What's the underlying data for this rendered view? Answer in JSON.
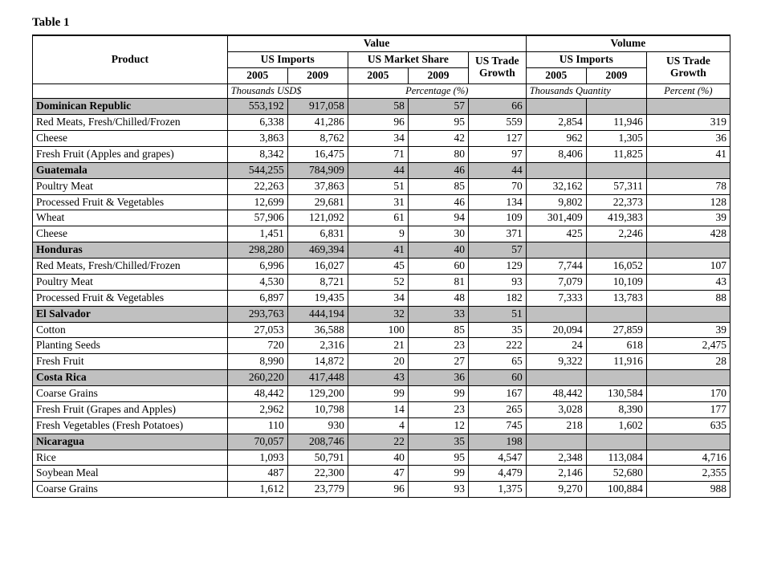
{
  "title": "Table 1",
  "headers": {
    "product": "Product",
    "value": "Value",
    "volume": "Volume",
    "us_imports": "US Imports",
    "us_market_share": "US Market Share",
    "us_trade_growth": "US Trade Growth",
    "us_trade_growth_multi": "US Trade Growth",
    "y2005": "2005",
    "y2009": "2009"
  },
  "units": {
    "thousands_usd": "Thousands USD$",
    "percentage": "Percentage (%)",
    "thousands_qty": "Thousands Quantity",
    "percent": "Percent (%)"
  },
  "countries": [
    {
      "name": "Dominican Republic",
      "totals": [
        "553,192",
        "917,058",
        "58",
        "57",
        "66",
        "",
        "",
        ""
      ],
      "rows": [
        {
          "label": "Red Meats, Fresh/Chilled/Frozen",
          "cells": [
            "6,338",
            "41,286",
            "96",
            "95",
            "559",
            "2,854",
            "11,946",
            "319"
          ]
        },
        {
          "label": "Cheese",
          "cells": [
            "3,863",
            "8,762",
            "34",
            "42",
            "127",
            "962",
            "1,305",
            "36"
          ]
        },
        {
          "label": "Fresh Fruit (Apples and grapes)",
          "cells": [
            "8,342",
            "16,475",
            "71",
            "80",
            "97",
            "8,406",
            "11,825",
            "41"
          ]
        }
      ]
    },
    {
      "name": "Guatemala",
      "totals": [
        "544,255",
        "784,909",
        "44",
        "46",
        "44",
        "",
        "",
        ""
      ],
      "rows": [
        {
          "label": "Poultry Meat",
          "cells": [
            "22,263",
            "37,863",
            "51",
            "85",
            "70",
            "32,162",
            "57,311",
            "78"
          ]
        },
        {
          "label": "Processed Fruit & Vegetables",
          "cells": [
            "12,699",
            "29,681",
            "31",
            "46",
            "134",
            "9,802",
            "22,373",
            "128"
          ]
        },
        {
          "label": "Wheat",
          "cells": [
            "57,906",
            "121,092",
            "61",
            "94",
            "109",
            "301,409",
            "419,383",
            "39"
          ]
        },
        {
          "label": "Cheese",
          "cells": [
            "1,451",
            "6,831",
            "9",
            "30",
            "371",
            "425",
            "2,246",
            "428"
          ]
        }
      ]
    },
    {
      "name": "Honduras",
      "totals": [
        "298,280",
        "469,394",
        "41",
        "40",
        "57",
        "",
        "",
        ""
      ],
      "rows": [
        {
          "label": "Red Meats, Fresh/Chilled/Frozen",
          "cells": [
            "6,996",
            "16,027",
            "45",
            "60",
            "129",
            "7,744",
            "16,052",
            "107"
          ]
        },
        {
          "label": "Poultry Meat",
          "cells": [
            "4,530",
            "8,721",
            "52",
            "81",
            "93",
            "7,079",
            "10,109",
            "43"
          ]
        },
        {
          "label": "Processed Fruit & Vegetables",
          "cells": [
            "6,897",
            "19,435",
            "34",
            "48",
            "182",
            "7,333",
            "13,783",
            "88"
          ]
        }
      ]
    },
    {
      "name": "El Salvador",
      "totals": [
        "293,763",
        "444,194",
        "32",
        "33",
        "51",
        "",
        "",
        ""
      ],
      "rows": [
        {
          "label": "Cotton",
          "cells": [
            "27,053",
            "36,588",
            "100",
            "85",
            "35",
            "20,094",
            "27,859",
            "39"
          ]
        },
        {
          "label": "Planting Seeds",
          "cells": [
            "720",
            "2,316",
            "21",
            "23",
            "222",
            "24",
            "618",
            "2,475"
          ]
        },
        {
          "label": "Fresh Fruit",
          "cells": [
            "8,990",
            "14,872",
            "20",
            "27",
            "65",
            "9,322",
            "11,916",
            "28"
          ]
        }
      ]
    },
    {
      "name": "Costa Rica",
      "totals": [
        "260,220",
        "417,448",
        "43",
        "36",
        "60",
        "",
        "",
        ""
      ],
      "rows": [
        {
          "label": "Coarse Grains",
          "cells": [
            "48,442",
            "129,200",
            "99",
            "99",
            "167",
            "48,442",
            "130,584",
            "170"
          ]
        },
        {
          "label": "Fresh Fruit (Grapes and Apples)",
          "cells": [
            "2,962",
            "10,798",
            "14",
            "23",
            "265",
            "3,028",
            "8,390",
            "177"
          ]
        },
        {
          "label": "Fresh Vegetables (Fresh Potatoes)",
          "cells": [
            "110",
            "930",
            "4",
            "12",
            "745",
            "218",
            "1,602",
            "635"
          ]
        }
      ]
    },
    {
      "name": "Nicaragua",
      "totals": [
        "70,057",
        "208,746",
        "22",
        "35",
        "198",
        "",
        "",
        ""
      ],
      "rows": [
        {
          "label": "Rice",
          "cells": [
            "1,093",
            "50,791",
            "40",
            "95",
            "4,547",
            "2,348",
            "113,084",
            "4,716"
          ]
        },
        {
          "label": "Soybean Meal",
          "cells": [
            "487",
            "22,300",
            "47",
            "99",
            "4,479",
            "2,146",
            "52,680",
            "2,355"
          ]
        },
        {
          "label": "Coarse Grains",
          "cells": [
            "1,612",
            "23,779",
            "96",
            "93",
            "1,375",
            "9,270",
            "100,884",
            "988"
          ]
        }
      ]
    }
  ]
}
